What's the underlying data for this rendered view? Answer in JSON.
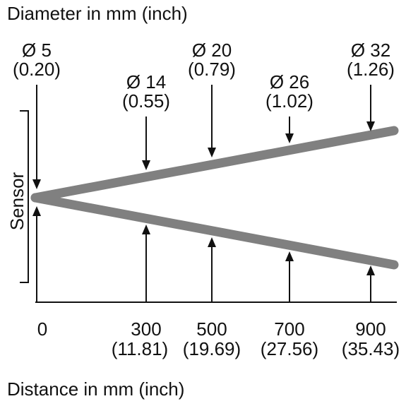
{
  "title": "Diameter in mm (inch)",
  "sensor_label": "Sensor",
  "x_label": "Distance in mm (inch)",
  "diameters": [
    {
      "mm": "Ø 5",
      "inch": "(0.20)"
    },
    {
      "mm": "Ø 14",
      "inch": "(0.55)"
    },
    {
      "mm": "Ø 20",
      "inch": "(0.79)"
    },
    {
      "mm": "Ø 26",
      "inch": "(1.02)"
    },
    {
      "mm": "Ø 32",
      "inch": "(1.26)"
    }
  ],
  "distances": [
    {
      "mm": "0"
    },
    {
      "mm": "300",
      "inch": "(11.81)"
    },
    {
      "mm": "500",
      "inch": "(19.69)"
    },
    {
      "mm": "700",
      "inch": "(27.56)"
    },
    {
      "mm": "900",
      "inch": "(35.43)"
    }
  ]
}
